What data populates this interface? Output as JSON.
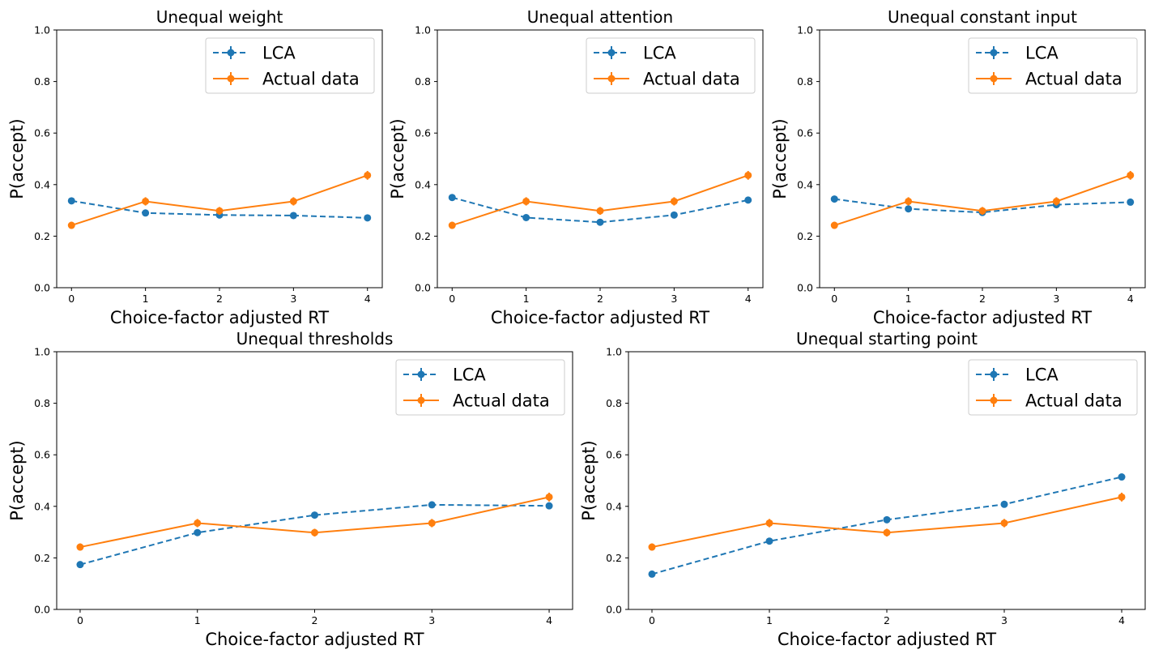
{
  "colors": {
    "lca": "#1f77b4",
    "actual": "#ff7f0e"
  },
  "chart_data": [
    {
      "type": "line",
      "title": "Unequal weight",
      "xlabel": "Choice-factor adjusted RT",
      "ylabel": "P(accept)",
      "x": [
        0,
        1,
        2,
        3,
        4
      ],
      "xticks": [
        "0",
        "1",
        "2",
        "3",
        "4"
      ],
      "yticks": [
        "0.0",
        "0.2",
        "0.4",
        "0.6",
        "0.8",
        "1.0"
      ],
      "xlim": [
        -0.2,
        4.2
      ],
      "ylim": [
        0,
        1
      ],
      "legend_position": "top-right",
      "series": [
        {
          "name": "LCA",
          "style": "dashed",
          "values": [
            0.337,
            0.29,
            0.282,
            0.28,
            0.271
          ],
          "err": [
            0.008,
            0.008,
            0.008,
            0.008,
            0.008
          ]
        },
        {
          "name": "Actual data",
          "style": "solid",
          "values": [
            0.242,
            0.335,
            0.298,
            0.335,
            0.436
          ],
          "err": [
            0.014,
            0.016,
            0.015,
            0.016,
            0.017
          ]
        }
      ]
    },
    {
      "type": "line",
      "title": "Unequal attention",
      "xlabel": "Choice-factor adjusted RT",
      "ylabel": "P(accept)",
      "x": [
        0,
        1,
        2,
        3,
        4
      ],
      "xticks": [
        "0",
        "1",
        "2",
        "3",
        "4"
      ],
      "yticks": [
        "0.0",
        "0.2",
        "0.4",
        "0.6",
        "0.8",
        "1.0"
      ],
      "xlim": [
        -0.2,
        4.2
      ],
      "ylim": [
        0,
        1
      ],
      "legend_position": "top-right",
      "series": [
        {
          "name": "LCA",
          "style": "dashed",
          "values": [
            0.35,
            0.272,
            0.254,
            0.282,
            0.34
          ],
          "err": [
            0.008,
            0.008,
            0.008,
            0.008,
            0.008
          ]
        },
        {
          "name": "Actual data",
          "style": "solid",
          "values": [
            0.242,
            0.335,
            0.298,
            0.335,
            0.436
          ],
          "err": [
            0.014,
            0.016,
            0.015,
            0.016,
            0.017
          ]
        }
      ]
    },
    {
      "type": "line",
      "title": "Unequal constant input",
      "xlabel": "Choice-factor adjusted RT",
      "ylabel": "P(accept)",
      "x": [
        0,
        1,
        2,
        3,
        4
      ],
      "xticks": [
        "0",
        "1",
        "2",
        "3",
        "4"
      ],
      "yticks": [
        "0.0",
        "0.2",
        "0.4",
        "0.6",
        "0.8",
        "1.0"
      ],
      "xlim": [
        -0.2,
        4.2
      ],
      "ylim": [
        0,
        1
      ],
      "legend_position": "top-right",
      "series": [
        {
          "name": "LCA",
          "style": "dashed",
          "values": [
            0.344,
            0.306,
            0.292,
            0.322,
            0.332
          ],
          "err": [
            0.008,
            0.008,
            0.008,
            0.008,
            0.008
          ]
        },
        {
          "name": "Actual data",
          "style": "solid",
          "values": [
            0.242,
            0.335,
            0.298,
            0.335,
            0.436
          ],
          "err": [
            0.014,
            0.016,
            0.015,
            0.016,
            0.017
          ]
        }
      ]
    },
    {
      "type": "line",
      "title": "Unequal thresholds",
      "xlabel": "Choice-factor adjusted RT",
      "ylabel": "P(accept)",
      "x": [
        0,
        1,
        2,
        3,
        4
      ],
      "xticks": [
        "0",
        "1",
        "2",
        "3",
        "4"
      ],
      "yticks": [
        "0.0",
        "0.2",
        "0.4",
        "0.6",
        "0.8",
        "1.0"
      ],
      "xlim": [
        -0.2,
        4.2
      ],
      "ylim": [
        0,
        1
      ],
      "legend_position": "top-right",
      "series": [
        {
          "name": "LCA",
          "style": "dashed",
          "values": [
            0.174,
            0.298,
            0.366,
            0.406,
            0.402
          ],
          "err": [
            0.008,
            0.008,
            0.008,
            0.008,
            0.008
          ]
        },
        {
          "name": "Actual data",
          "style": "solid",
          "values": [
            0.242,
            0.335,
            0.298,
            0.335,
            0.436
          ],
          "err": [
            0.014,
            0.016,
            0.015,
            0.016,
            0.017
          ]
        }
      ]
    },
    {
      "type": "line",
      "title": "Unequal starting point",
      "xlabel": "Choice-factor adjusted RT",
      "ylabel": "P(accept)",
      "x": [
        0,
        1,
        2,
        3,
        4
      ],
      "xticks": [
        "0",
        "1",
        "2",
        "3",
        "4"
      ],
      "yticks": [
        "0.0",
        "0.2",
        "0.4",
        "0.6",
        "0.8",
        "1.0"
      ],
      "xlim": [
        -0.2,
        4.2
      ],
      "ylim": [
        0,
        1
      ],
      "legend_position": "top-right",
      "series": [
        {
          "name": "LCA",
          "style": "dashed",
          "values": [
            0.137,
            0.265,
            0.348,
            0.408,
            0.514
          ],
          "err": [
            0.008,
            0.008,
            0.008,
            0.008,
            0.01
          ]
        },
        {
          "name": "Actual data",
          "style": "solid",
          "values": [
            0.242,
            0.335,
            0.298,
            0.335,
            0.436
          ],
          "err": [
            0.014,
            0.016,
            0.015,
            0.016,
            0.017
          ]
        }
      ]
    }
  ]
}
